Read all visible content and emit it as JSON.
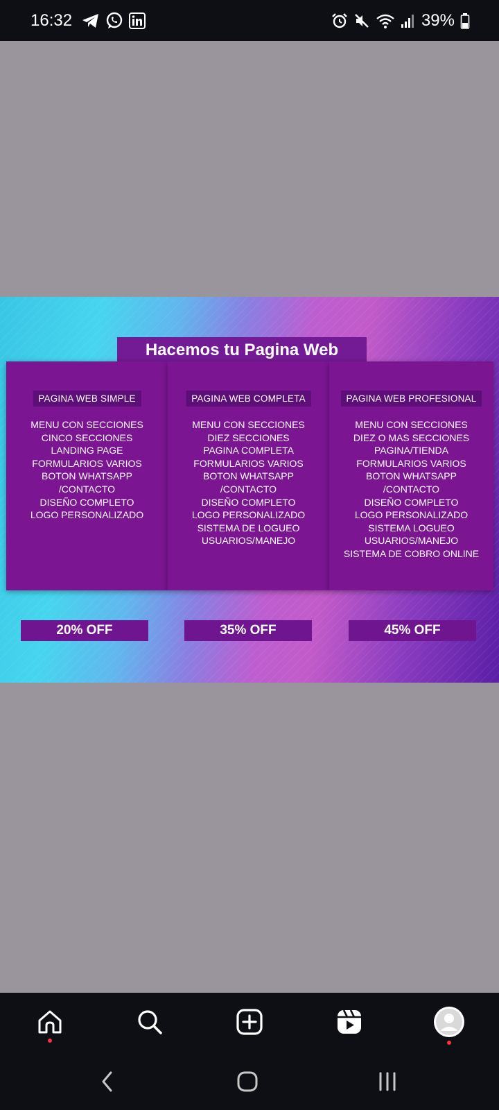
{
  "status_bar": {
    "time": "16:32",
    "battery": "39%",
    "left_icons": [
      "telegram-icon",
      "whatsapp-icon",
      "linkedin-icon"
    ],
    "right_icons": [
      "alarm-icon",
      "mute-icon",
      "wifi-icon",
      "signal-icon",
      "battery-icon"
    ]
  },
  "post": {
    "title": "Hacemos tu Pagina Web",
    "plans": [
      {
        "name": "PAGINA WEB SIMPLE",
        "features": [
          "MENU CON SECCIONES",
          "CINCO SECCIONES",
          "LANDING PAGE",
          "FORMULARIOS VARIOS",
          "BOTON WHATSAPP",
          "/CONTACTO",
          "DISEÑO COMPLETO",
          "LOGO PERSONALIZADO"
        ],
        "discount": "20% OFF"
      },
      {
        "name": "PAGINA WEB COMPLETA",
        "features": [
          "MENU CON SECCIONES",
          "DIEZ SECCIONES",
          "PAGINA COMPLETA",
          "FORMULARIOS VARIOS",
          "BOTON WHATSAPP",
          "/CONTACTO",
          "DISEÑO COMPLETO",
          "LOGO PERSONALIZADO",
          "SISTEMA DE LOGUEO",
          "USUARIOS/MANEJO"
        ],
        "discount": "35% OFF"
      },
      {
        "name": "PAGINA WEB PROFESIONAL",
        "features": [
          "MENU CON SECCIONES",
          "DIEZ O MAS SECCIONES",
          "PAGINA/TIENDA",
          "FORMULARIOS VARIOS",
          "BOTON WHATSAPP",
          "/CONTACTO",
          "DISEÑO COMPLETO",
          "LOGO PERSONALIZADO",
          "SISTEMA LOGUEO",
          "USUARIOS/MANEJO",
          "SISTEMA DE COBRO ONLINE"
        ],
        "discount": "45% OFF"
      }
    ]
  },
  "bottom_nav": {
    "items": [
      "home-icon",
      "search-icon",
      "create-post-icon",
      "reels-icon",
      "profile-avatar"
    ],
    "notification_dot_color": "#ff3040"
  },
  "system_nav": [
    "back-button",
    "home-button",
    "recents-button"
  ],
  "colors": {
    "status_bar_bg": "#0d0f14",
    "viewer_bg": "#9a959c",
    "card_bg": "#7b1592",
    "accent_cyan": "#39c6e6",
    "accent_magenta": "#c25bc9"
  }
}
